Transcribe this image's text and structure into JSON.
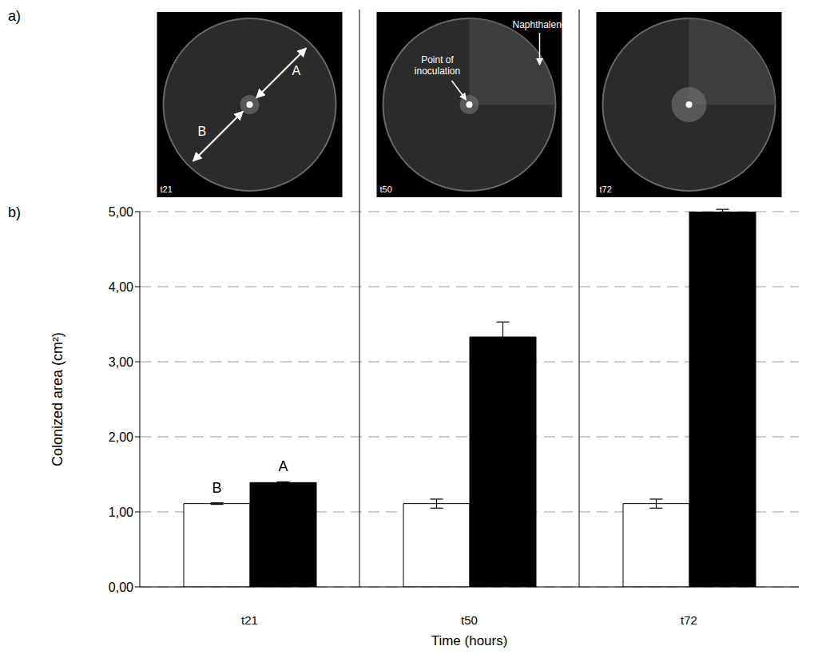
{
  "figure_labels": [
    "a)",
    "b)"
  ],
  "photos": [
    {
      "time": "t21",
      "dimensions": [
        "A",
        "B"
      ]
    },
    {
      "time": "t50",
      "callouts": [
        "Point of inoculation",
        "Naphthalene"
      ]
    },
    {
      "time": "t72"
    }
  ],
  "chart_data": {
    "type": "bar",
    "x_label": "Time (hours)",
    "y_label": "Colonized area (cm²)",
    "categories": [
      "t21",
      "t50",
      "t72"
    ],
    "series": [
      {
        "name": "B",
        "color": "#ffffff",
        "values": [
          1.11,
          1.11,
          1.11
        ],
        "error": [
          0.01,
          0.06,
          0.06
        ]
      },
      {
        "name": "A",
        "color": "#000000",
        "values": [
          1.39,
          3.33,
          5.0
        ],
        "error": [
          0.01,
          0.2,
          0.03
        ]
      }
    ],
    "ylim": [
      0,
      5
    ],
    "yticks": [
      {
        "value": 0,
        "label": "0,00"
      },
      {
        "value": 1,
        "label": "1,00"
      },
      {
        "value": 2,
        "label": "2,00"
      },
      {
        "value": 3,
        "label": "3,00"
      },
      {
        "value": 4,
        "label": "4,00"
      },
      {
        "value": 5,
        "label": "5,00"
      }
    ],
    "grid": true
  }
}
